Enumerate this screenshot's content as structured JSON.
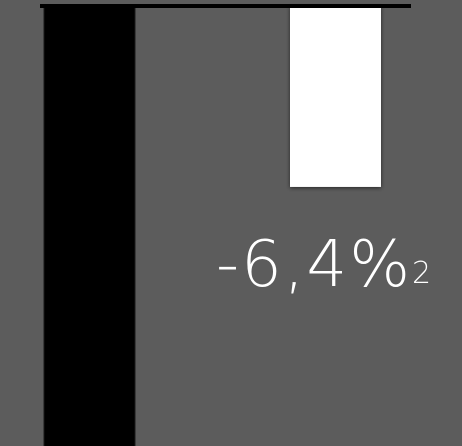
{
  "chart_data": {
    "type": "bar",
    "values": [
      -15.6,
      -6.4
    ],
    "value_labels": [
      null,
      "-6,4%"
    ],
    "footnote": "2",
    "colors": [
      "#000000",
      "#ffffff"
    ],
    "ylim": [
      -15.6,
      0
    ]
  }
}
